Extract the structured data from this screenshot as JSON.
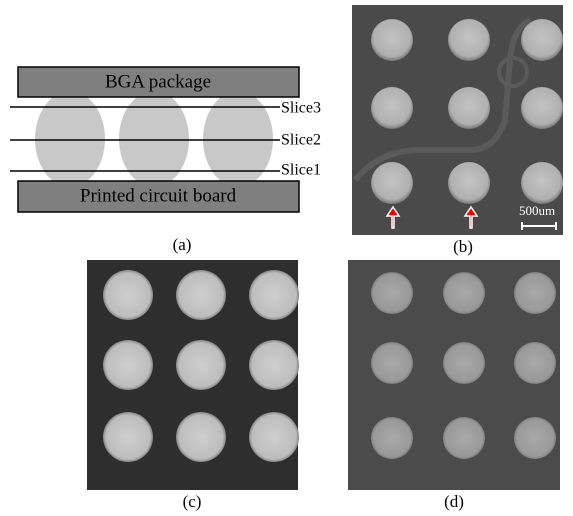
{
  "diagram": {
    "top_label": "BGA package",
    "slices": [
      "Slice3",
      "Slice2",
      "Slice1"
    ],
    "bottom_label": "Printed circuit board"
  },
  "panels": {
    "a": "(a)",
    "b": "(b)",
    "c": "(c)",
    "d": "(d)"
  },
  "scale_bar": "500um"
}
